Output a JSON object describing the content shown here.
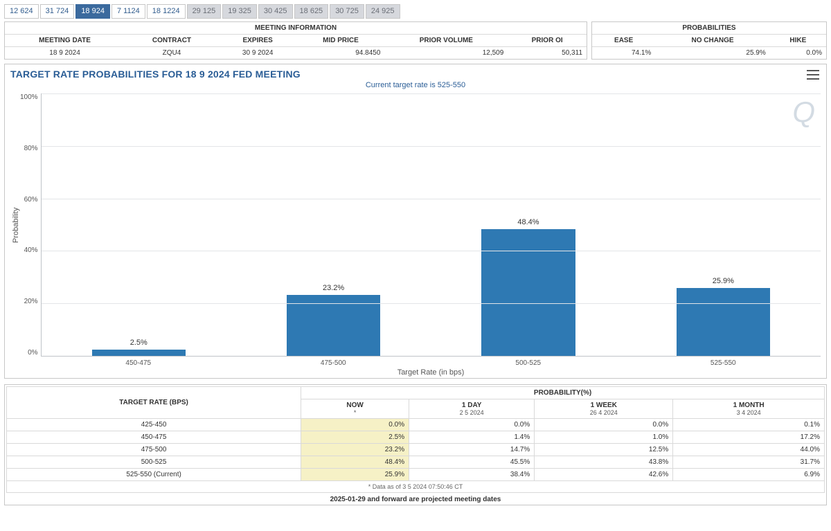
{
  "tabs": [
    {
      "label": "12 624",
      "state": "normal"
    },
    {
      "label": "31 724",
      "state": "normal"
    },
    {
      "label": "18 924",
      "state": "active"
    },
    {
      "label": "7 1124",
      "state": "normal"
    },
    {
      "label": "18 1224",
      "state": "normal"
    },
    {
      "label": "29 125",
      "state": "muted"
    },
    {
      "label": "19 325",
      "state": "muted"
    },
    {
      "label": "30 425",
      "state": "muted"
    },
    {
      "label": "18 625",
      "state": "muted"
    },
    {
      "label": "30 725",
      "state": "muted"
    },
    {
      "label": "24 925",
      "state": "muted"
    }
  ],
  "meeting_info": {
    "title": "MEETING INFORMATION",
    "headers": [
      "MEETING DATE",
      "CONTRACT",
      "EXPIRES",
      "MID PRICE",
      "PRIOR VOLUME",
      "PRIOR OI"
    ],
    "row": [
      "18 9 2024",
      "ZQU4",
      "30 9 2024",
      "94.8450",
      "12,509",
      "50,311"
    ]
  },
  "probabilities_panel": {
    "title": "PROBABILITIES",
    "headers": [
      "EASE",
      "NO CHANGE",
      "HIKE"
    ],
    "row": [
      "74.1%",
      "25.9%",
      "0.0%"
    ]
  },
  "chart": {
    "title": "TARGET RATE PROBABILITIES FOR 18 9 2024 FED MEETING",
    "subtitle": "Current target rate is 525-550",
    "watermark": "Q",
    "type": "bar",
    "ylabel": "Probability",
    "xlabel": "Target Rate (in bps)",
    "categories": [
      "450-475",
      "475-500",
      "500-525",
      "525-550"
    ],
    "values": [
      2.5,
      23.2,
      48.4,
      25.9
    ],
    "value_labels": [
      "2.5%",
      "23.2%",
      "48.4%",
      "25.9%"
    ],
    "bar_color": "#2e79b3",
    "ylim": [
      0,
      100
    ],
    "ytick_step": 20,
    "yticks": [
      "100%",
      "80%",
      "60%",
      "40%",
      "20%",
      "0%"
    ],
    "grid_color": "#e3e5e8",
    "axis_color": "#bfc3c8",
    "background_color": "#ffffff",
    "title_color": "#2a5d96",
    "subtitle_color": "#2a5d96",
    "title_fontsize": 14,
    "label_fontsize": 11,
    "bar_width": 0.48
  },
  "prob_table": {
    "target_header": "TARGET RATE (BPS)",
    "prob_header": "PROBABILITY(%)",
    "columns": [
      {
        "label": "NOW",
        "sub": "*",
        "highlight": true
      },
      {
        "label": "1 DAY",
        "sub": "2 5 2024"
      },
      {
        "label": "1 WEEK",
        "sub": "26 4 2024"
      },
      {
        "label": "1 MONTH",
        "sub": "3 4 2024"
      }
    ],
    "rows": [
      {
        "rate": "425-450",
        "vals": [
          "0.0%",
          "0.0%",
          "0.0%",
          "0.1%"
        ]
      },
      {
        "rate": "450-475",
        "vals": [
          "2.5%",
          "1.4%",
          "1.0%",
          "17.2%"
        ]
      },
      {
        "rate": "475-500",
        "vals": [
          "23.2%",
          "14.7%",
          "12.5%",
          "44.0%"
        ]
      },
      {
        "rate": "500-525",
        "vals": [
          "48.4%",
          "45.5%",
          "43.8%",
          "31.7%"
        ]
      },
      {
        "rate": "525-550 (Current)",
        "vals": [
          "25.9%",
          "38.4%",
          "42.6%",
          "6.9%"
        ]
      }
    ],
    "footnote": "* Data as of 3 5 2024 07:50:46 CT"
  },
  "projected_note": "2025-01-29 and forward are projected meeting dates"
}
